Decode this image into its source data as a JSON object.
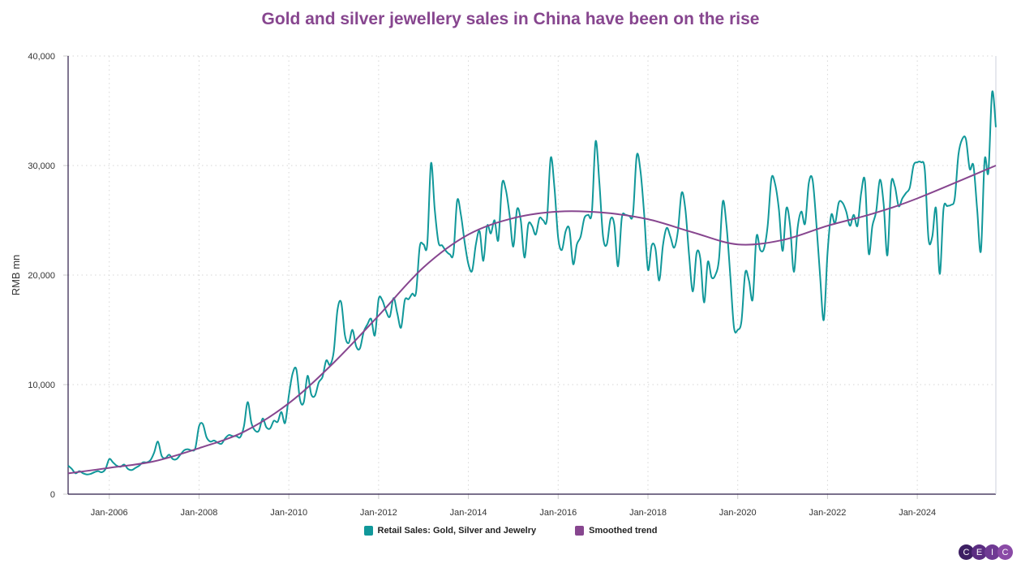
{
  "chart_data": {
    "type": "line",
    "title": "Gold and silver jewellery sales in China have been on the rise",
    "ylabel": "RMB mn",
    "xlabel": "",
    "ylim": [
      0,
      40000
    ],
    "xlim": [
      "2005-02",
      "2025-10"
    ],
    "grid": true,
    "legend_position": "bottom",
    "y_ticks": [
      "0",
      "10,000",
      "20,000",
      "30,000",
      "40,000"
    ],
    "y_tick_values": [
      0,
      10000,
      20000,
      30000,
      40000
    ],
    "x_ticks": [
      "Jan-2006",
      "Jan-2008",
      "Jan-2010",
      "Jan-2012",
      "Jan-2014",
      "Jan-2016",
      "Jan-2018",
      "Jan-2020",
      "Jan-2022",
      "Jan-2024"
    ],
    "x_tick_dates": [
      "2006-01",
      "2008-01",
      "2010-01",
      "2012-01",
      "2014-01",
      "2016-01",
      "2018-01",
      "2020-01",
      "2022-01",
      "2024-01"
    ],
    "series": [
      {
        "name": "Retail Sales: Gold, Silver and Jewelry",
        "color": "#11989a",
        "start": "2005-02",
        "frequency": "monthly",
        "values": [
          2600,
          2300,
          1900,
          2100,
          1900,
          1800,
          1850,
          2000,
          2100,
          2000,
          2300,
          3200,
          2900,
          2600,
          2500,
          2700,
          2300,
          2200,
          2400,
          2600,
          2900,
          2900,
          3100,
          3800,
          4800,
          3500,
          3300,
          3600,
          3200,
          3200,
          3600,
          4000,
          4100,
          4000,
          4200,
          6200,
          6400,
          5200,
          4800,
          4900,
          4700,
          4600,
          5100,
          5400,
          5300,
          5300,
          5200,
          6200,
          8400,
          6500,
          5800,
          5800,
          6900,
          6100,
          6000,
          6700,
          6600,
          7500,
          6500,
          9000,
          11000,
          11400,
          8600,
          8400,
          10800,
          9100,
          9000,
          10200,
          10700,
          12200,
          11800,
          13000,
          16800,
          17500,
          14500,
          13800,
          15000,
          13500,
          13300,
          14800,
          15500,
          16000,
          14500,
          17800,
          17700,
          16700,
          16200,
          17900,
          16500,
          15200,
          17700,
          17800,
          18300,
          18400,
          22600,
          22800,
          22800,
          30200,
          26000,
          23000,
          22700,
          22200,
          21900,
          22000,
          26800,
          25500,
          23000,
          21000,
          20400,
          22800,
          24000,
          21300,
          24500,
          23800,
          25000,
          23200,
          28300,
          27800,
          25500,
          22600,
          26000,
          25000,
          21600,
          24600,
          24500,
          23700,
          25200,
          25000,
          25100,
          30700,
          28000,
          23400,
          22300,
          24000,
          24200,
          21000,
          22800,
          23500,
          25200,
          25500,
          25700,
          32200,
          28500,
          23500,
          22800,
          25100,
          24600,
          20800,
          25200,
          25500,
          25400,
          25600,
          30900,
          29500,
          25500,
          20500,
          22700,
          22400,
          19500,
          22700,
          24300,
          23500,
          22500,
          24000,
          27500,
          26000,
          21800,
          18500,
          22000,
          21500,
          17500,
          21200,
          19800,
          20000,
          21500,
          26700,
          24500,
          20000,
          15200,
          15000,
          15800,
          20200,
          19500,
          17800,
          23500,
          22300,
          22400,
          24500,
          28800,
          28300,
          26000,
          22200,
          26100,
          24500,
          20300,
          24300,
          25800,
          24700,
          28400,
          28700,
          24800,
          20000,
          15900,
          22000,
          25500,
          24700,
          26600,
          26600,
          25800,
          24500,
          25500,
          24500,
          27500,
          28600,
          22000,
          24500,
          25800,
          28700,
          26500,
          21800,
          28300,
          28100,
          26300,
          27000,
          27500,
          28000,
          30000,
          30300,
          30300,
          29600,
          23300,
          23500,
          26100,
          20100,
          26000,
          26300,
          26400,
          27000,
          31000,
          32400,
          32400,
          29700,
          30000,
          26000,
          22200,
          30500,
          29400,
          36700,
          33500
        ]
      },
      {
        "name": "Smoothed trend",
        "color": "#87468f",
        "points": [
          [
            "2005-02",
            1900
          ],
          [
            "2006-01",
            2400
          ],
          [
            "2007-01",
            3000
          ],
          [
            "2008-01",
            4200
          ],
          [
            "2009-01",
            5700
          ],
          [
            "2010-01",
            8300
          ],
          [
            "2011-01",
            12000
          ],
          [
            "2012-01",
            16300
          ],
          [
            "2013-01",
            20700
          ],
          [
            "2014-01",
            23700
          ],
          [
            "2015-01",
            25200
          ],
          [
            "2016-01",
            25800
          ],
          [
            "2017-01",
            25700
          ],
          [
            "2018-01",
            25100
          ],
          [
            "2019-01",
            23900
          ],
          [
            "2020-01",
            22800
          ],
          [
            "2021-01",
            23200
          ],
          [
            "2022-01",
            24500
          ],
          [
            "2023-01",
            25600
          ],
          [
            "2024-01",
            27000
          ],
          [
            "2025-10",
            30000
          ]
        ]
      }
    ]
  },
  "branding": {
    "logo_letters": [
      "C",
      "E",
      "I",
      "C"
    ],
    "logo_color": "#5b2d82"
  }
}
